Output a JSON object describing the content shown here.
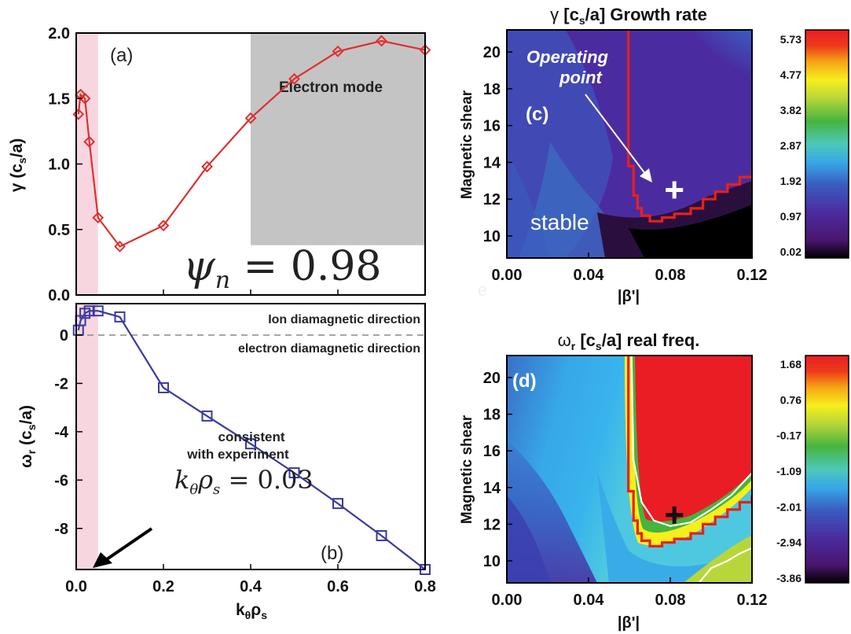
{
  "chart_data": [
    {
      "type": "line",
      "panel_label": "(a)",
      "xlabel_main": "k",
      "xlabel_sub1": "θ",
      "xlabel_mid": "ρ",
      "xlabel_sub2": "s",
      "ylabel_main": "γ (c",
      "ylabel_sub": "s",
      "ylabel_tail": "/a)",
      "xlim": [
        0,
        0.8
      ],
      "ylim": [
        0,
        2.0
      ],
      "xticks": [
        "0.0",
        "0.2",
        "0.4",
        "0.6",
        "0.8"
      ],
      "yticks": [
        "0.0",
        "0.5",
        "1.0",
        "1.5",
        "2.0"
      ],
      "series": [
        {
          "color": "#e03030",
          "marker": "diamond",
          "x": [
            0.005,
            0.01,
            0.02,
            0.03,
            0.05,
            0.1,
            0.2,
            0.3,
            0.4,
            0.5,
            0.6,
            0.7,
            0.8
          ],
          "y": [
            1.38,
            1.53,
            1.5,
            1.17,
            0.59,
            0.37,
            0.53,
            0.98,
            1.35,
            1.65,
            1.86,
            1.94,
            1.87
          ]
        }
      ],
      "shaded_region_label": "Electron mode",
      "shaded_region_x": [
        0.4,
        0.8
      ],
      "shaded_region_y": [
        0.38,
        2.0
      ],
      "low_k_band_x": [
        0.0,
        0.05
      ],
      "annotation_math": "ψ",
      "annotation_sub": "n",
      "annotation_value": " = 0.98"
    },
    {
      "type": "line",
      "panel_label": "(b)",
      "ylabel_main": "ω",
      "ylabel_sub": "r",
      "ylabel_tail": " (c",
      "ylabel_sub2": "s",
      "ylabel_tail2": "/a)",
      "xlim": [
        0,
        0.8
      ],
      "ylim": [
        -9.7,
        1.3
      ],
      "xticks": [
        "0.0",
        "0.2",
        "0.4",
        "0.6",
        "0.8"
      ],
      "yticks": [
        "0",
        "-2",
        "-4",
        "-6",
        "-8"
      ],
      "series": [
        {
          "color": "#3a3aa0",
          "marker": "square",
          "x": [
            0.005,
            0.01,
            0.02,
            0.03,
            0.05,
            0.1,
            0.2,
            0.3,
            0.4,
            0.5,
            0.6,
            0.7,
            0.8
          ],
          "y": [
            0.2,
            0.6,
            0.9,
            1.0,
            1.0,
            0.75,
            -2.18,
            -3.35,
            -4.5,
            -5.7,
            -6.97,
            -8.3,
            -9.7
          ]
        }
      ],
      "text_upper": "Ion diamagnetic direction",
      "text_lower": "electron diamagnetic direction",
      "note_line1": "consistent",
      "note_line2": "with experiment",
      "kline_k": "k",
      "kline_sub1": "θ",
      "kline_rho": "ρ",
      "kline_sub2": "s",
      "kline_value": " = 0.03"
    },
    {
      "type": "heatmap",
      "title_symbol": "γ ",
      "title_bracket": "[c",
      "title_sub": "s",
      "title_tail": "/a] Growth rate",
      "panel_label": "(c)",
      "xlabel": "|β'|",
      "ylabel": "Magnetic shear",
      "xticks": [
        "0.00",
        "0.04",
        "0.08",
        "0.12"
      ],
      "yticks": [
        "20",
        "18",
        "16",
        "14",
        "12",
        "10"
      ],
      "xlim": [
        0,
        0.12
      ],
      "ylim": [
        8.8,
        21.2
      ],
      "colorbar_ticks": [
        "5.73",
        "4.77",
        "3.82",
        "2.87",
        "1.92",
        "0.97",
        "0.02"
      ],
      "annotation_op1": "Operating",
      "annotation_op2": "point",
      "annotation_stable": "stable",
      "operating_point": [
        0.082,
        12.5
      ]
    },
    {
      "type": "heatmap",
      "title_symbol": "ω",
      "title_sub1": "r",
      "title_bracket": " [c",
      "title_sub": "s",
      "title_tail": "/a] real freq.",
      "panel_label": "(d)",
      "xlabel": "|β'|",
      "ylabel": "Magnetic shear",
      "xticks": [
        "0.00",
        "0.04",
        "0.08",
        "0.12"
      ],
      "yticks": [
        "20",
        "18",
        "16",
        "14",
        "12",
        "10"
      ],
      "xlim": [
        0,
        0.12
      ],
      "ylim": [
        8.8,
        21.2
      ],
      "colorbar_ticks": [
        "1.68",
        "0.76",
        "-0.17",
        "-1.09",
        "-2.01",
        "-2.94",
        "-3.86"
      ],
      "operating_point": [
        0.082,
        12.5
      ]
    }
  ],
  "colors": {
    "red_line": "#e03030",
    "blue_line": "#3a3aa0",
    "pink_band": "#f7d6e0",
    "gray_region": "#c4c4c4",
    "contour_red": "#e8201c"
  },
  "stray_mark": "e"
}
